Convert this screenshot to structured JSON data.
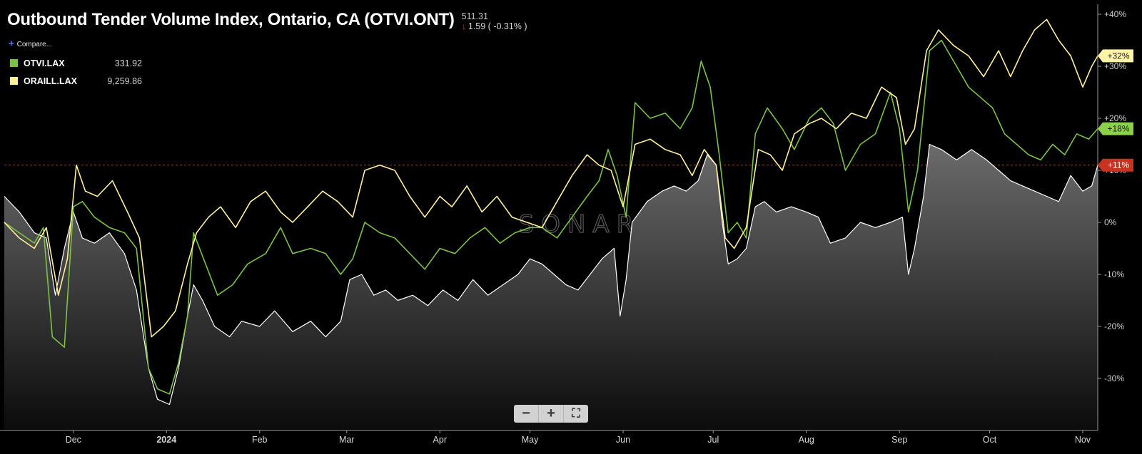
{
  "header": {
    "title": "Outbound Tender Volume Index, Ontario, CA (OTVI.ONT)",
    "last_value": "511.31",
    "change_text": "1.59 ( -0.31% )",
    "compare_label": "Compare..."
  },
  "legend": [
    {
      "name": "OTVI.LAX",
      "value": "331.92",
      "color": "#7cc242"
    },
    {
      "name": "ORAILL.LAX",
      "value": "9,259.86",
      "color": "#ffef9a"
    }
  ],
  "zoom_controls": {
    "minus": "−",
    "plus": "+",
    "fullscreen": "⛶"
  },
  "watermark": "SONAR",
  "chart_data": {
    "type": "line",
    "title": "Outbound Tender Volume Index, Ontario, CA (OTVI.ONT)",
    "y_axis": {
      "min": -40,
      "max": 40,
      "ticks": [
        "+40%",
        "+30%",
        "+20%",
        "+10%",
        "0%",
        "-10%",
        "-20%",
        "-30%"
      ],
      "tick_values": [
        40,
        30,
        20,
        10,
        0,
        -10,
        -20,
        -30
      ]
    },
    "x_axis": {
      "labels": [
        "Dec",
        "2024",
        "Feb",
        "Mar",
        "Apr",
        "May",
        "Jun",
        "Jul",
        "Aug",
        "Sep",
        "Oct",
        "Nov"
      ],
      "label_dates": [
        "2023-12-01",
        "2024-01-01",
        "2024-02-01",
        "2024-03-01",
        "2024-04-01",
        "2024-05-01",
        "2024-06-01",
        "2024-07-01",
        "2024-08-01",
        "2024-09-01",
        "2024-10-01",
        "2024-11-01"
      ],
      "start": "2023-11-08",
      "end": "2024-11-06"
    },
    "reference_line": {
      "value": 11,
      "label": "+11%",
      "color": "#c8321e"
    },
    "series": [
      {
        "name": "OTVI.ONT",
        "color": "#ffffff",
        "style": "area",
        "end_label": "+11%",
        "points": [
          [
            "2023-11-08",
            5
          ],
          [
            "2023-11-13",
            2
          ],
          [
            "2023-11-18",
            -2
          ],
          [
            "2023-11-22",
            -3
          ],
          [
            "2023-11-25",
            -14
          ],
          [
            "2023-11-28",
            -5
          ],
          [
            "2023-12-01",
            2
          ],
          [
            "2023-12-04",
            -3
          ],
          [
            "2023-12-08",
            -4
          ],
          [
            "2023-12-13",
            -2
          ],
          [
            "2023-12-18",
            -6
          ],
          [
            "2023-12-22",
            -13
          ],
          [
            "2023-12-26",
            -28
          ],
          [
            "2023-12-29",
            -34
          ],
          [
            "2024-01-02",
            -35
          ],
          [
            "2024-01-05",
            -28
          ],
          [
            "2024-01-08",
            -18
          ],
          [
            "2024-01-10",
            -12
          ],
          [
            "2024-01-13",
            -15
          ],
          [
            "2024-01-17",
            -20
          ],
          [
            "2024-01-22",
            -22
          ],
          [
            "2024-01-26",
            -19
          ],
          [
            "2024-02-01",
            -20
          ],
          [
            "2024-02-06",
            -17
          ],
          [
            "2024-02-12",
            -21
          ],
          [
            "2024-02-18",
            -19
          ],
          [
            "2024-02-23",
            -22
          ],
          [
            "2024-02-28",
            -19
          ],
          [
            "2024-03-02",
            -11
          ],
          [
            "2024-03-06",
            -10
          ],
          [
            "2024-03-10",
            -14
          ],
          [
            "2024-03-14",
            -13
          ],
          [
            "2024-03-18",
            -15
          ],
          [
            "2024-03-23",
            -14
          ],
          [
            "2024-03-28",
            -16
          ],
          [
            "2024-04-02",
            -13
          ],
          [
            "2024-04-07",
            -15
          ],
          [
            "2024-04-12",
            -11
          ],
          [
            "2024-04-17",
            -14
          ],
          [
            "2024-04-22",
            -12
          ],
          [
            "2024-04-27",
            -10
          ],
          [
            "2024-05-01",
            -7
          ],
          [
            "2024-05-05",
            -8
          ],
          [
            "2024-05-09",
            -10
          ],
          [
            "2024-05-13",
            -12
          ],
          [
            "2024-05-17",
            -13
          ],
          [
            "2024-05-21",
            -10
          ],
          [
            "2024-05-25",
            -7
          ],
          [
            "2024-05-29",
            -5
          ],
          [
            "2024-05-31",
            -18
          ],
          [
            "2024-06-02",
            -11
          ],
          [
            "2024-06-04",
            0
          ],
          [
            "2024-06-09",
            4
          ],
          [
            "2024-06-14",
            6
          ],
          [
            "2024-06-18",
            7
          ],
          [
            "2024-06-22",
            6
          ],
          [
            "2024-06-26",
            8
          ],
          [
            "2024-06-29",
            13
          ],
          [
            "2024-07-02",
            11
          ],
          [
            "2024-07-04",
            0
          ],
          [
            "2024-07-06",
            -8
          ],
          [
            "2024-07-09",
            -7
          ],
          [
            "2024-07-12",
            -5
          ],
          [
            "2024-07-15",
            3
          ],
          [
            "2024-07-18",
            4
          ],
          [
            "2024-07-22",
            2
          ],
          [
            "2024-07-27",
            3
          ],
          [
            "2024-08-01",
            2
          ],
          [
            "2024-08-05",
            1
          ],
          [
            "2024-08-09",
            -4
          ],
          [
            "2024-08-14",
            -3
          ],
          [
            "2024-08-19",
            0
          ],
          [
            "2024-08-24",
            -1
          ],
          [
            "2024-08-29",
            0
          ],
          [
            "2024-09-02",
            1
          ],
          [
            "2024-09-04",
            -10
          ],
          [
            "2024-09-06",
            -5
          ],
          [
            "2024-09-09",
            5
          ],
          [
            "2024-09-11",
            15
          ],
          [
            "2024-09-15",
            14
          ],
          [
            "2024-09-20",
            12
          ],
          [
            "2024-09-25",
            14
          ],
          [
            "2024-09-30",
            12
          ],
          [
            "2024-10-04",
            10
          ],
          [
            "2024-10-08",
            8
          ],
          [
            "2024-10-12",
            7
          ],
          [
            "2024-10-16",
            6
          ],
          [
            "2024-10-20",
            5
          ],
          [
            "2024-10-24",
            4
          ],
          [
            "2024-10-28",
            9
          ],
          [
            "2024-11-01",
            6
          ],
          [
            "2024-11-04",
            7
          ],
          [
            "2024-11-06",
            11
          ]
        ]
      },
      {
        "name": "OTVI.LAX",
        "color": "#7cc242",
        "style": "line",
        "end_label": "+18%",
        "points": [
          [
            "2023-11-08",
            0
          ],
          [
            "2023-11-13",
            -2
          ],
          [
            "2023-11-18",
            -4
          ],
          [
            "2023-11-21",
            -1
          ],
          [
            "2023-11-24",
            -22
          ],
          [
            "2023-11-28",
            -24
          ],
          [
            "2023-12-01",
            3
          ],
          [
            "2023-12-04",
            4
          ],
          [
            "2023-12-08",
            1
          ],
          [
            "2023-12-13",
            -1
          ],
          [
            "2023-12-18",
            -2
          ],
          [
            "2023-12-22",
            -5
          ],
          [
            "2023-12-26",
            -28
          ],
          [
            "2023-12-29",
            -32
          ],
          [
            "2024-01-02",
            -33
          ],
          [
            "2024-01-05",
            -27
          ],
          [
            "2024-01-08",
            -18
          ],
          [
            "2024-01-10",
            -2
          ],
          [
            "2024-01-14",
            -8
          ],
          [
            "2024-01-18",
            -14
          ],
          [
            "2024-01-23",
            -12
          ],
          [
            "2024-01-28",
            -8
          ],
          [
            "2024-02-03",
            -6
          ],
          [
            "2024-02-08",
            -1
          ],
          [
            "2024-02-12",
            -6
          ],
          [
            "2024-02-18",
            -5
          ],
          [
            "2024-02-23",
            -6
          ],
          [
            "2024-02-28",
            -10
          ],
          [
            "2024-03-03",
            -7
          ],
          [
            "2024-03-07",
            0
          ],
          [
            "2024-03-12",
            -2
          ],
          [
            "2024-03-17",
            -3
          ],
          [
            "2024-03-22",
            -6
          ],
          [
            "2024-03-27",
            -9
          ],
          [
            "2024-04-01",
            -5
          ],
          [
            "2024-04-06",
            -6
          ],
          [
            "2024-04-11",
            -3
          ],
          [
            "2024-04-16",
            -1
          ],
          [
            "2024-04-21",
            -4
          ],
          [
            "2024-04-26",
            -2
          ],
          [
            "2024-05-01",
            -1
          ],
          [
            "2024-05-05",
            -1
          ],
          [
            "2024-05-10",
            -3
          ],
          [
            "2024-05-15",
            1
          ],
          [
            "2024-05-20",
            5
          ],
          [
            "2024-05-24",
            8
          ],
          [
            "2024-05-27",
            14
          ],
          [
            "2024-05-30",
            9
          ],
          [
            "2024-06-02",
            1
          ],
          [
            "2024-06-05",
            23
          ],
          [
            "2024-06-10",
            20
          ],
          [
            "2024-06-15",
            21
          ],
          [
            "2024-06-20",
            18
          ],
          [
            "2024-06-24",
            22
          ],
          [
            "2024-06-27",
            31
          ],
          [
            "2024-06-30",
            26
          ],
          [
            "2024-07-03",
            13
          ],
          [
            "2024-07-06",
            -2
          ],
          [
            "2024-07-09",
            0
          ],
          [
            "2024-07-12",
            -3
          ],
          [
            "2024-07-15",
            17
          ],
          [
            "2024-07-19",
            22
          ],
          [
            "2024-07-24",
            18
          ],
          [
            "2024-07-28",
            14
          ],
          [
            "2024-08-02",
            20
          ],
          [
            "2024-08-06",
            22
          ],
          [
            "2024-08-10",
            19
          ],
          [
            "2024-08-14",
            10
          ],
          [
            "2024-08-19",
            15
          ],
          [
            "2024-08-24",
            17
          ],
          [
            "2024-08-29",
            25
          ],
          [
            "2024-09-01",
            18
          ],
          [
            "2024-09-04",
            2
          ],
          [
            "2024-09-07",
            10
          ],
          [
            "2024-09-11",
            33
          ],
          [
            "2024-09-15",
            35
          ],
          [
            "2024-09-20",
            30
          ],
          [
            "2024-09-24",
            26
          ],
          [
            "2024-09-28",
            24
          ],
          [
            "2024-10-02",
            22
          ],
          [
            "2024-10-06",
            17
          ],
          [
            "2024-10-10",
            15
          ],
          [
            "2024-10-14",
            13
          ],
          [
            "2024-10-18",
            12
          ],
          [
            "2024-10-22",
            15
          ],
          [
            "2024-10-26",
            13
          ],
          [
            "2024-10-30",
            17
          ],
          [
            "2024-11-03",
            16
          ],
          [
            "2024-11-06",
            18
          ]
        ]
      },
      {
        "name": "ORAILL.LAX",
        "color": "#ffef9a",
        "style": "line",
        "end_label": "+32%",
        "points": [
          [
            "2023-11-08",
            0
          ],
          [
            "2023-11-13",
            -3
          ],
          [
            "2023-11-18",
            -5
          ],
          [
            "2023-11-22",
            -1
          ],
          [
            "2023-11-26",
            -14
          ],
          [
            "2023-11-29",
            -7
          ],
          [
            "2023-12-02",
            11
          ],
          [
            "2023-12-05",
            6
          ],
          [
            "2023-12-09",
            5
          ],
          [
            "2023-12-14",
            8
          ],
          [
            "2023-12-19",
            2
          ],
          [
            "2023-12-23",
            -3
          ],
          [
            "2023-12-27",
            -22
          ],
          [
            "2023-12-31",
            -20
          ],
          [
            "2024-01-04",
            -17
          ],
          [
            "2024-01-08",
            -8
          ],
          [
            "2024-01-11",
            -2
          ],
          [
            "2024-01-15",
            1
          ],
          [
            "2024-01-19",
            3
          ],
          [
            "2024-01-24",
            -1
          ],
          [
            "2024-01-29",
            4
          ],
          [
            "2024-02-03",
            6
          ],
          [
            "2024-02-08",
            2
          ],
          [
            "2024-02-12",
            0
          ],
          [
            "2024-02-17",
            3
          ],
          [
            "2024-02-22",
            6
          ],
          [
            "2024-02-27",
            4
          ],
          [
            "2024-03-03",
            1
          ],
          [
            "2024-03-07",
            10
          ],
          [
            "2024-03-12",
            11
          ],
          [
            "2024-03-17",
            10
          ],
          [
            "2024-03-22",
            5
          ],
          [
            "2024-03-27",
            1
          ],
          [
            "2024-04-01",
            5
          ],
          [
            "2024-04-05",
            3
          ],
          [
            "2024-04-10",
            7
          ],
          [
            "2024-04-15",
            2
          ],
          [
            "2024-04-20",
            5
          ],
          [
            "2024-04-25",
            1
          ],
          [
            "2024-04-30",
            0
          ],
          [
            "2024-05-05",
            -1
          ],
          [
            "2024-05-10",
            4
          ],
          [
            "2024-05-15",
            9
          ],
          [
            "2024-05-20",
            13
          ],
          [
            "2024-05-24",
            11
          ],
          [
            "2024-05-28",
            10
          ],
          [
            "2024-06-01",
            3
          ],
          [
            "2024-06-05",
            15
          ],
          [
            "2024-06-10",
            16
          ],
          [
            "2024-06-15",
            14
          ],
          [
            "2024-06-20",
            13
          ],
          [
            "2024-06-24",
            9
          ],
          [
            "2024-06-28",
            14
          ],
          [
            "2024-07-02",
            11
          ],
          [
            "2024-07-05",
            -3
          ],
          [
            "2024-07-08",
            -5
          ],
          [
            "2024-07-12",
            -1
          ],
          [
            "2024-07-16",
            14
          ],
          [
            "2024-07-20",
            13
          ],
          [
            "2024-07-24",
            10
          ],
          [
            "2024-07-28",
            17
          ],
          [
            "2024-08-02",
            19
          ],
          [
            "2024-08-06",
            20
          ],
          [
            "2024-08-11",
            18
          ],
          [
            "2024-08-16",
            21
          ],
          [
            "2024-08-21",
            20
          ],
          [
            "2024-08-26",
            26
          ],
          [
            "2024-08-31",
            24
          ],
          [
            "2024-09-03",
            15
          ],
          [
            "2024-09-06",
            18
          ],
          [
            "2024-09-10",
            33
          ],
          [
            "2024-09-14",
            37
          ],
          [
            "2024-09-19",
            34
          ],
          [
            "2024-09-24",
            32
          ],
          [
            "2024-09-29",
            28
          ],
          [
            "2024-10-04",
            33
          ],
          [
            "2024-10-08",
            28
          ],
          [
            "2024-10-12",
            33
          ],
          [
            "2024-10-16",
            37
          ],
          [
            "2024-10-20",
            39
          ],
          [
            "2024-10-24",
            35
          ],
          [
            "2024-10-28",
            32
          ],
          [
            "2024-11-01",
            26
          ],
          [
            "2024-11-04",
            30
          ],
          [
            "2024-11-06",
            32
          ]
        ]
      }
    ]
  }
}
